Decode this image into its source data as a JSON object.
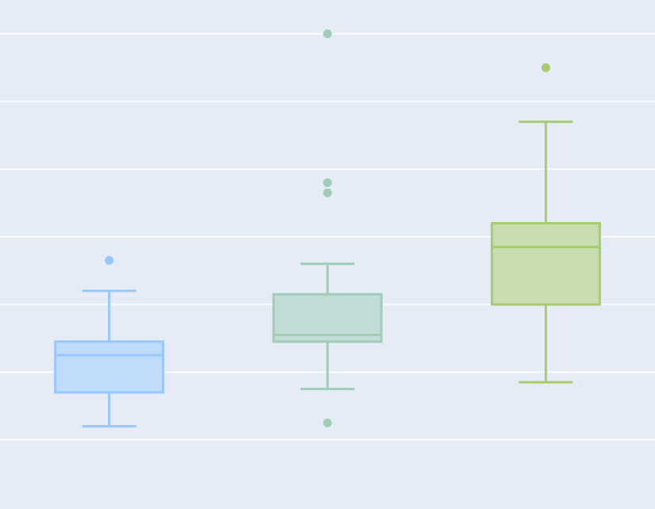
{
  "chart_data": {
    "type": "box",
    "grid": true,
    "background_color": "#e5ecf6",
    "gridline_color": "#ffffff",
    "ylim": [
      0,
      15
    ],
    "gridlines": [
      2,
      4,
      6,
      8,
      10,
      12,
      14
    ],
    "boxes": [
      {
        "color": "#97c7fb",
        "fill": "#bfdcfb",
        "whisker_low": 2.4,
        "q1": 3.4,
        "median": 4.5,
        "q3": 4.9,
        "whisker_high": 6.4,
        "outliers": [
          7.3
        ]
      },
      {
        "color": "#a0cbb6",
        "fill": "#c2ddd7",
        "whisker_low": 3.5,
        "q1": 4.9,
        "median": 5.1,
        "q3": 6.3,
        "whisker_high": 7.2,
        "outliers": [
          2.5,
          9.3,
          9.6,
          14.0
        ]
      },
      {
        "color": "#a6cc6d",
        "fill": "#c8deb0",
        "whisker_low": 3.7,
        "q1": 6.0,
        "median": 7.7,
        "q3": 8.4,
        "whisker_high": 11.4,
        "outliers": [
          13.0
        ]
      }
    ]
  }
}
